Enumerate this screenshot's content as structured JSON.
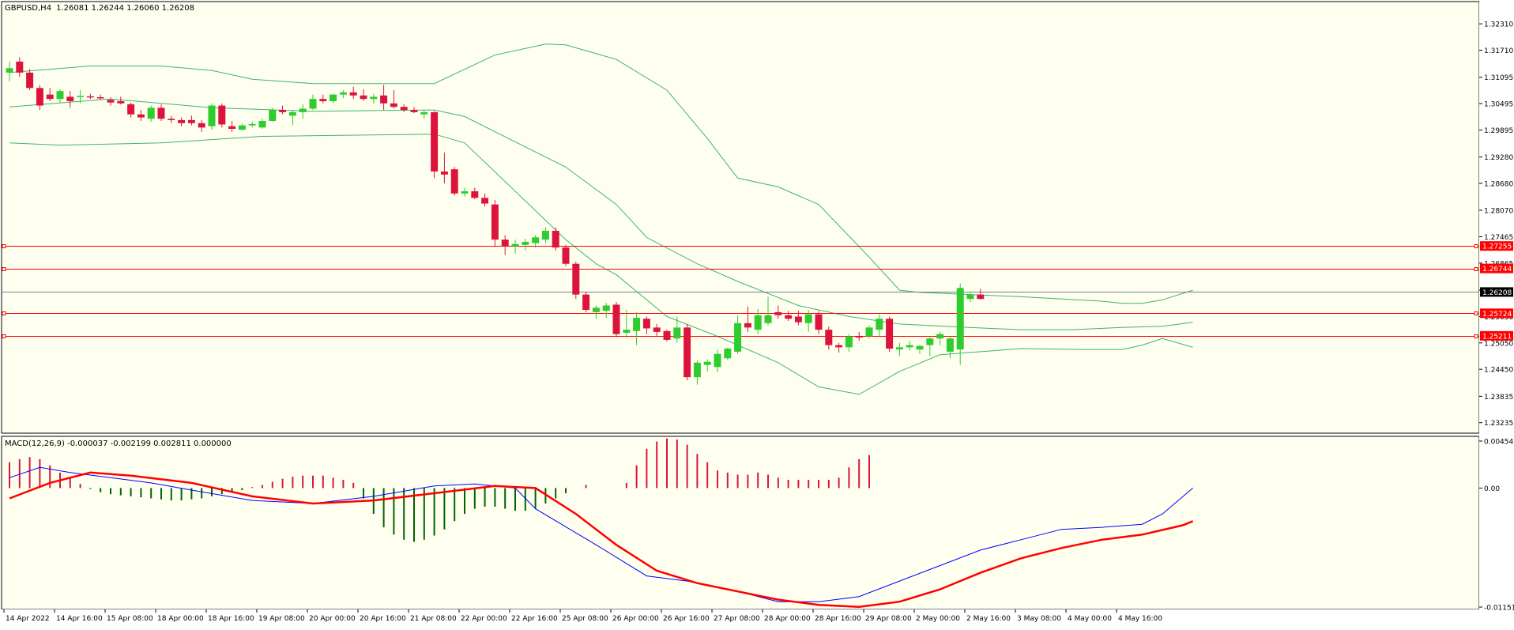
{
  "chart_data": [
    {
      "type": "candlestick",
      "symbol_label": "GBPUSD,H4",
      "ohlc_label": "1.26081 1.26244 1.26060 1.26208",
      "y_range": [
        1.2323,
        1.326
      ],
      "y_ticks": [
        "1.32310",
        "1.31710",
        "1.31095",
        "1.30495",
        "1.29895",
        "1.29280",
        "1.28680",
        "1.28070",
        "1.27465",
        "1.26865",
        "1.26250",
        "1.25650",
        "1.25050",
        "1.24450",
        "1.23835",
        "1.23235"
      ],
      "x_labels": [
        "14 Apr 2022",
        "14 Apr 16:00",
        "15 Apr 08:00",
        "18 Apr 00:00",
        "18 Apr 16:00",
        "19 Apr 08:00",
        "20 Apr 00:00",
        "20 Apr 16:00",
        "21 Apr 08:00",
        "22 Apr 00:00",
        "22 Apr 16:00",
        "25 Apr 08:00",
        "26 Apr 00:00",
        "26 Apr 16:00",
        "27 Apr 08:00",
        "28 Apr 00:00",
        "28 Apr 16:00",
        "29 Apr 08:00",
        "2 May 00:00",
        "2 May 16:00",
        "3 May 08:00",
        "4 May 00:00",
        "4 May 16:00"
      ],
      "candles": [
        [
          1.312,
          1.3145,
          1.31,
          1.313
        ],
        [
          1.3145,
          1.3155,
          1.311,
          1.312
        ],
        [
          1.312,
          1.3128,
          1.308,
          1.3085
        ],
        [
          1.3085,
          1.3092,
          1.3035,
          1.3045
        ],
        [
          1.307,
          1.3085,
          1.3055,
          1.306
        ],
        [
          1.306,
          1.3082,
          1.305,
          1.3078
        ],
        [
          1.3065,
          1.3078,
          1.304,
          1.3055
        ],
        [
          1.3065,
          1.308,
          1.305,
          1.3067
        ],
        [
          1.3066,
          1.3072,
          1.306,
          1.3065
        ],
        [
          1.3064,
          1.307,
          1.3058,
          1.3062
        ],
        [
          1.3058,
          1.3064,
          1.3045,
          1.3052
        ],
        [
          1.3055,
          1.3065,
          1.3048,
          1.305
        ],
        [
          1.3048,
          1.3052,
          1.3018,
          1.3025
        ],
        [
          1.3025,
          1.3035,
          1.301,
          1.3018
        ],
        [
          1.3015,
          1.3045,
          1.3008,
          1.304
        ],
        [
          1.304,
          1.3048,
          1.301,
          1.3015
        ],
        [
          1.3015,
          1.3022,
          1.3005,
          1.3012
        ],
        [
          1.3012,
          1.3018,
          1.2998,
          1.3005
        ],
        [
          1.3012,
          1.3022,
          1.3,
          1.3005
        ],
        [
          1.3005,
          1.3012,
          1.2985,
          1.2995
        ],
        [
          1.2998,
          1.305,
          1.299,
          1.3045
        ],
        [
          1.3045,
          1.305,
          1.2995,
          1.3002
        ],
        [
          1.2998,
          1.301,
          1.2985,
          1.2992
        ],
        [
          1.299,
          1.3004,
          1.2988,
          1.3
        ],
        [
          1.3,
          1.3008,
          1.2995,
          1.3003
        ],
        [
          1.2995,
          1.3015,
          1.2992,
          1.301
        ],
        [
          1.301,
          1.304,
          1.3008,
          1.3035
        ],
        [
          1.3035,
          1.3045,
          1.3025,
          1.303
        ],
        [
          1.3022,
          1.3035,
          1.3,
          1.303
        ],
        [
          1.303,
          1.3048,
          1.3015,
          1.3038
        ],
        [
          1.3038,
          1.307,
          1.3035,
          1.306
        ],
        [
          1.306,
          1.307,
          1.305,
          1.3055
        ],
        [
          1.3055,
          1.3072,
          1.305,
          1.307
        ],
        [
          1.307,
          1.308,
          1.3062,
          1.3075
        ],
        [
          1.3075,
          1.3088,
          1.306,
          1.3068
        ],
        [
          1.3068,
          1.3082,
          1.3055,
          1.306
        ],
        [
          1.306,
          1.3072,
          1.305,
          1.3065
        ],
        [
          1.3068,
          1.3092,
          1.3035,
          1.305
        ],
        [
          1.305,
          1.308,
          1.3038,
          1.3042
        ],
        [
          1.3042,
          1.3048,
          1.303,
          1.3035
        ],
        [
          1.3035,
          1.3042,
          1.3028,
          1.303
        ],
        [
          1.3025,
          1.3035,
          1.3015,
          1.303
        ],
        [
          1.303,
          1.3032,
          1.288,
          1.2895
        ],
        [
          1.2895,
          1.2938,
          1.2868,
          1.2888
        ],
        [
          1.29,
          1.2905,
          1.284,
          1.2845
        ],
        [
          1.2845,
          1.2858,
          1.2838,
          1.285
        ],
        [
          1.285,
          1.2858,
          1.2832,
          1.2835
        ],
        [
          1.2835,
          1.2845,
          1.2815,
          1.2822
        ],
        [
          1.282,
          1.283,
          1.2725,
          1.274
        ],
        [
          1.274,
          1.275,
          1.2705,
          1.2725
        ],
        [
          1.2725,
          1.274,
          1.2708,
          1.273
        ],
        [
          1.2728,
          1.2742,
          1.2715,
          1.2735
        ],
        [
          1.2732,
          1.275,
          1.2722,
          1.2745
        ],
        [
          1.274,
          1.2768,
          1.2732,
          1.276
        ],
        [
          1.276,
          1.2768,
          1.2715,
          1.2722
        ],
        [
          1.2722,
          1.2728,
          1.268,
          1.2685
        ],
        [
          1.2685,
          1.269,
          1.2605,
          1.2615
        ],
        [
          1.2615,
          1.2622,
          1.2575,
          1.258
        ],
        [
          1.2575,
          1.259,
          1.256,
          1.2585
        ],
        [
          1.2578,
          1.2596,
          1.2562,
          1.259
        ],
        [
          1.2592,
          1.2598,
          1.2518,
          1.2525
        ],
        [
          1.2528,
          1.258,
          1.2516,
          1.2535
        ],
        [
          1.2532,
          1.2575,
          1.25,
          1.2562
        ],
        [
          1.256,
          1.2565,
          1.2525,
          1.2538
        ],
        [
          1.254,
          1.2548,
          1.252,
          1.253
        ],
        [
          1.2532,
          1.2535,
          1.2508,
          1.2512
        ],
        [
          1.2515,
          1.2565,
          1.2505,
          1.254
        ],
        [
          1.254,
          1.2548,
          1.242,
          1.2427
        ],
        [
          1.2427,
          1.2465,
          1.241,
          1.246
        ],
        [
          1.2455,
          1.2468,
          1.244,
          1.2462
        ],
        [
          1.245,
          1.249,
          1.2438,
          1.248
        ],
        [
          1.247,
          1.2495,
          1.2466,
          1.2492
        ],
        [
          1.2485,
          1.2568,
          1.248,
          1.255
        ],
        [
          1.255,
          1.2588,
          1.253,
          1.254
        ],
        [
          1.2535,
          1.2582,
          1.2525,
          1.2568
        ],
        [
          1.255,
          1.261,
          1.2545,
          1.2568
        ],
        [
          1.2575,
          1.259,
          1.256,
          1.2568
        ],
        [
          1.2568,
          1.2578,
          1.2555,
          1.256
        ],
        [
          1.2565,
          1.2578,
          1.2545,
          1.2552
        ],
        [
          1.255,
          1.258,
          1.253,
          1.257
        ],
        [
          1.257,
          1.2578,
          1.2525,
          1.2535
        ],
        [
          1.2535,
          1.2542,
          1.249,
          1.25
        ],
        [
          1.25,
          1.2505,
          1.2483,
          1.2495
        ],
        [
          1.2495,
          1.2525,
          1.2485,
          1.252
        ],
        [
          1.252,
          1.253,
          1.251,
          1.2518
        ],
        [
          1.252,
          1.2545,
          1.2515,
          1.254
        ],
        [
          1.2535,
          1.257,
          1.252,
          1.256
        ],
        [
          1.256,
          1.2565,
          1.2485,
          1.2492
        ],
        [
          1.249,
          1.2505,
          1.2475,
          1.2495
        ],
        [
          1.2495,
          1.251,
          1.2488,
          1.25
        ],
        [
          1.249,
          1.25,
          1.248,
          1.2498
        ],
        [
          1.25,
          1.252,
          1.2475,
          1.2515
        ],
        [
          1.2515,
          1.253,
          1.25,
          1.2525
        ],
        [
          1.2485,
          1.252,
          1.247,
          1.2515
        ],
        [
          1.249,
          1.264,
          1.2455,
          1.263
        ],
        [
          1.2605,
          1.262,
          1.2598,
          1.2615
        ],
        [
          1.2615,
          1.2628,
          1.2604,
          1.2605
        ]
      ],
      "bollinger": {
        "upper": [
          [
            0,
            1.312
          ],
          [
            8,
            1.3135
          ],
          [
            15,
            1.3135
          ],
          [
            20,
            1.3125
          ],
          [
            24,
            1.3105
          ],
          [
            30,
            1.3095
          ],
          [
            42,
            1.3095
          ],
          [
            48,
            1.316
          ],
          [
            53,
            1.3185
          ],
          [
            55,
            1.3183
          ],
          [
            60,
            1.315
          ],
          [
            65,
            1.308
          ],
          [
            69,
            1.297
          ],
          [
            72,
            1.288
          ],
          [
            76,
            1.286
          ],
          [
            80,
            1.282
          ],
          [
            85,
            1.27
          ],
          [
            88,
            1.2625
          ],
          [
            90,
            1.262
          ],
          [
            100,
            1.261
          ],
          [
            108,
            1.26
          ],
          [
            110,
            1.2595
          ],
          [
            112,
            1.2595
          ],
          [
            114,
            1.2603
          ],
          [
            117,
            1.2625
          ]
        ],
        "middle": [
          [
            0,
            1.3042
          ],
          [
            10,
            1.306
          ],
          [
            20,
            1.304
          ],
          [
            30,
            1.3032
          ],
          [
            42,
            1.3035
          ],
          [
            45,
            1.302
          ],
          [
            55,
            1.2905
          ],
          [
            60,
            1.282
          ],
          [
            63,
            1.2745
          ],
          [
            68,
            1.2685
          ],
          [
            72,
            1.2645
          ],
          [
            78,
            1.259
          ],
          [
            83,
            1.2565
          ],
          [
            88,
            1.2548
          ],
          [
            94,
            1.2541
          ],
          [
            100,
            1.2535
          ],
          [
            105,
            1.2535
          ],
          [
            110,
            1.254
          ],
          [
            114,
            1.2543
          ],
          [
            117,
            1.2552
          ]
        ],
        "lower": [
          [
            0,
            1.296
          ],
          [
            5,
            1.2955
          ],
          [
            15,
            1.296
          ],
          [
            25,
            1.2975
          ],
          [
            42,
            1.298
          ],
          [
            45,
            1.296
          ],
          [
            55,
            1.274
          ],
          [
            58,
            1.2685
          ],
          [
            60,
            1.266
          ],
          [
            65,
            1.2565
          ],
          [
            70,
            1.252
          ],
          [
            76,
            1.246
          ],
          [
            80,
            1.2405
          ],
          [
            84,
            1.2388
          ],
          [
            88,
            1.244
          ],
          [
            92,
            1.2478
          ],
          [
            100,
            1.2492
          ],
          [
            106,
            1.249
          ],
          [
            110,
            1.249
          ],
          [
            112,
            1.25
          ],
          [
            114,
            1.2515
          ],
          [
            117,
            1.2495
          ]
        ]
      },
      "hlines": [
        {
          "value": 1.27255,
          "label": "1.27255",
          "color": "#ff0000"
        },
        {
          "value": 1.26744,
          "label": "1.26744",
          "color": "#ff0000"
        },
        {
          "value": 1.25724,
          "label": "1.25724",
          "color": "#ff0000"
        },
        {
          "value": 1.25211,
          "label": "1.25211",
          "color": "#ff0000"
        }
      ],
      "bid_line": {
        "value": 1.26208,
        "label": "1.26208"
      },
      "colors": {
        "bull": "#2ecc2e",
        "bear": "#dc143c",
        "bollinger": "#3cb371",
        "background": "#fffff0",
        "grid_line": "#708090"
      }
    },
    {
      "type": "macd",
      "label": "MACD(12,26,9) -0.000037 -0.002199 0.002811 0.000000",
      "y_range": [
        -0.011517,
        0.004545
      ],
      "y_ticks": [
        "0.004545",
        "0.00",
        "-0.011517"
      ],
      "histogram": [
        0.0025,
        0.0028,
        0.003,
        0.0028,
        0.0022,
        0.0015,
        0.001,
        0.0004,
        -0.0001,
        -0.0004,
        -0.0006,
        -0.0007,
        -0.0008,
        -0.0009,
        -0.001,
        -0.0011,
        -0.0012,
        -0.0012,
        -0.0011,
        -0.001,
        -0.0008,
        -0.0006,
        -0.0004,
        -0.0002,
        0.0001,
        0.0003,
        0.0006,
        0.0009,
        0.0011,
        0.0012,
        0.0012,
        0.0012,
        0.001,
        0.0008,
        0.0005,
        -0.001,
        -0.0025,
        -0.0038,
        -0.0045,
        -0.005,
        -0.0052,
        -0.005,
        -0.0046,
        -0.004,
        -0.0032,
        -0.0025,
        -0.002,
        -0.0018,
        -0.0018,
        -0.002,
        -0.0022,
        -0.0022,
        -0.002,
        -0.0015,
        -0.001,
        -0.0005,
        0.0,
        0.0003,
        0.0,
        0.0,
        0.0,
        0.0005,
        0.0022,
        0.0038,
        0.0045,
        0.0048,
        0.0047,
        0.0042,
        0.0033,
        0.0025,
        0.0017,
        0.0015,
        0.0013,
        0.0013,
        0.0015,
        0.0013,
        0.001,
        0.0008,
        0.0008,
        0.0008,
        0.0008,
        0.0008,
        0.001,
        0.002,
        0.0028,
        0.0032
      ],
      "macd": [
        [
          0,
          0.001
        ],
        [
          3,
          0.002
        ],
        [
          6,
          0.0015
        ],
        [
          10,
          0.001
        ],
        [
          14,
          0.0005
        ],
        [
          18,
          -0.0002
        ],
        [
          24,
          -0.0012
        ],
        [
          30,
          -0.0015
        ],
        [
          36,
          -0.0008
        ],
        [
          42,
          0.0002
        ],
        [
          46,
          0.0004
        ],
        [
          50,
          0.0
        ],
        [
          52,
          -0.002
        ],
        [
          58,
          -0.0055
        ],
        [
          63,
          -0.0085
        ],
        [
          67,
          -0.009
        ],
        [
          72,
          -0.01
        ],
        [
          76,
          -0.011
        ],
        [
          80,
          -0.011
        ],
        [
          84,
          -0.0105
        ],
        [
          88,
          -0.009
        ],
        [
          92,
          -0.0075
        ],
        [
          96,
          -0.006
        ],
        [
          100,
          -0.005
        ],
        [
          104,
          -0.004
        ],
        [
          108,
          -0.0038
        ],
        [
          112,
          -0.0035
        ],
        [
          114,
          -0.0025
        ],
        [
          117,
          0.0
        ]
      ],
      "signal": [
        [
          0,
          -0.001
        ],
        [
          4,
          0.0005
        ],
        [
          8,
          0.0015
        ],
        [
          12,
          0.0012
        ],
        [
          18,
          0.0005
        ],
        [
          24,
          -0.0008
        ],
        [
          30,
          -0.0015
        ],
        [
          36,
          -0.0012
        ],
        [
          42,
          -0.0005
        ],
        [
          48,
          0.0002
        ],
        [
          52,
          0.0
        ],
        [
          56,
          -0.0025
        ],
        [
          60,
          -0.0055
        ],
        [
          64,
          -0.008
        ],
        [
          68,
          -0.0092
        ],
        [
          72,
          -0.01
        ],
        [
          76,
          -0.0108
        ],
        [
          80,
          -0.0113
        ],
        [
          84,
          -0.0115
        ],
        [
          88,
          -0.011
        ],
        [
          92,
          -0.0098
        ],
        [
          96,
          -0.0082
        ],
        [
          100,
          -0.0068
        ],
        [
          104,
          -0.0058
        ],
        [
          108,
          -0.005
        ],
        [
          112,
          -0.0045
        ],
        [
          116,
          -0.0036
        ],
        [
          117,
          -0.0032
        ]
      ],
      "colors": {
        "hist_pos": "#dc143c",
        "hist_neg": "#006400",
        "macd": "#0000ff",
        "signal": "#ff0000"
      }
    }
  ]
}
